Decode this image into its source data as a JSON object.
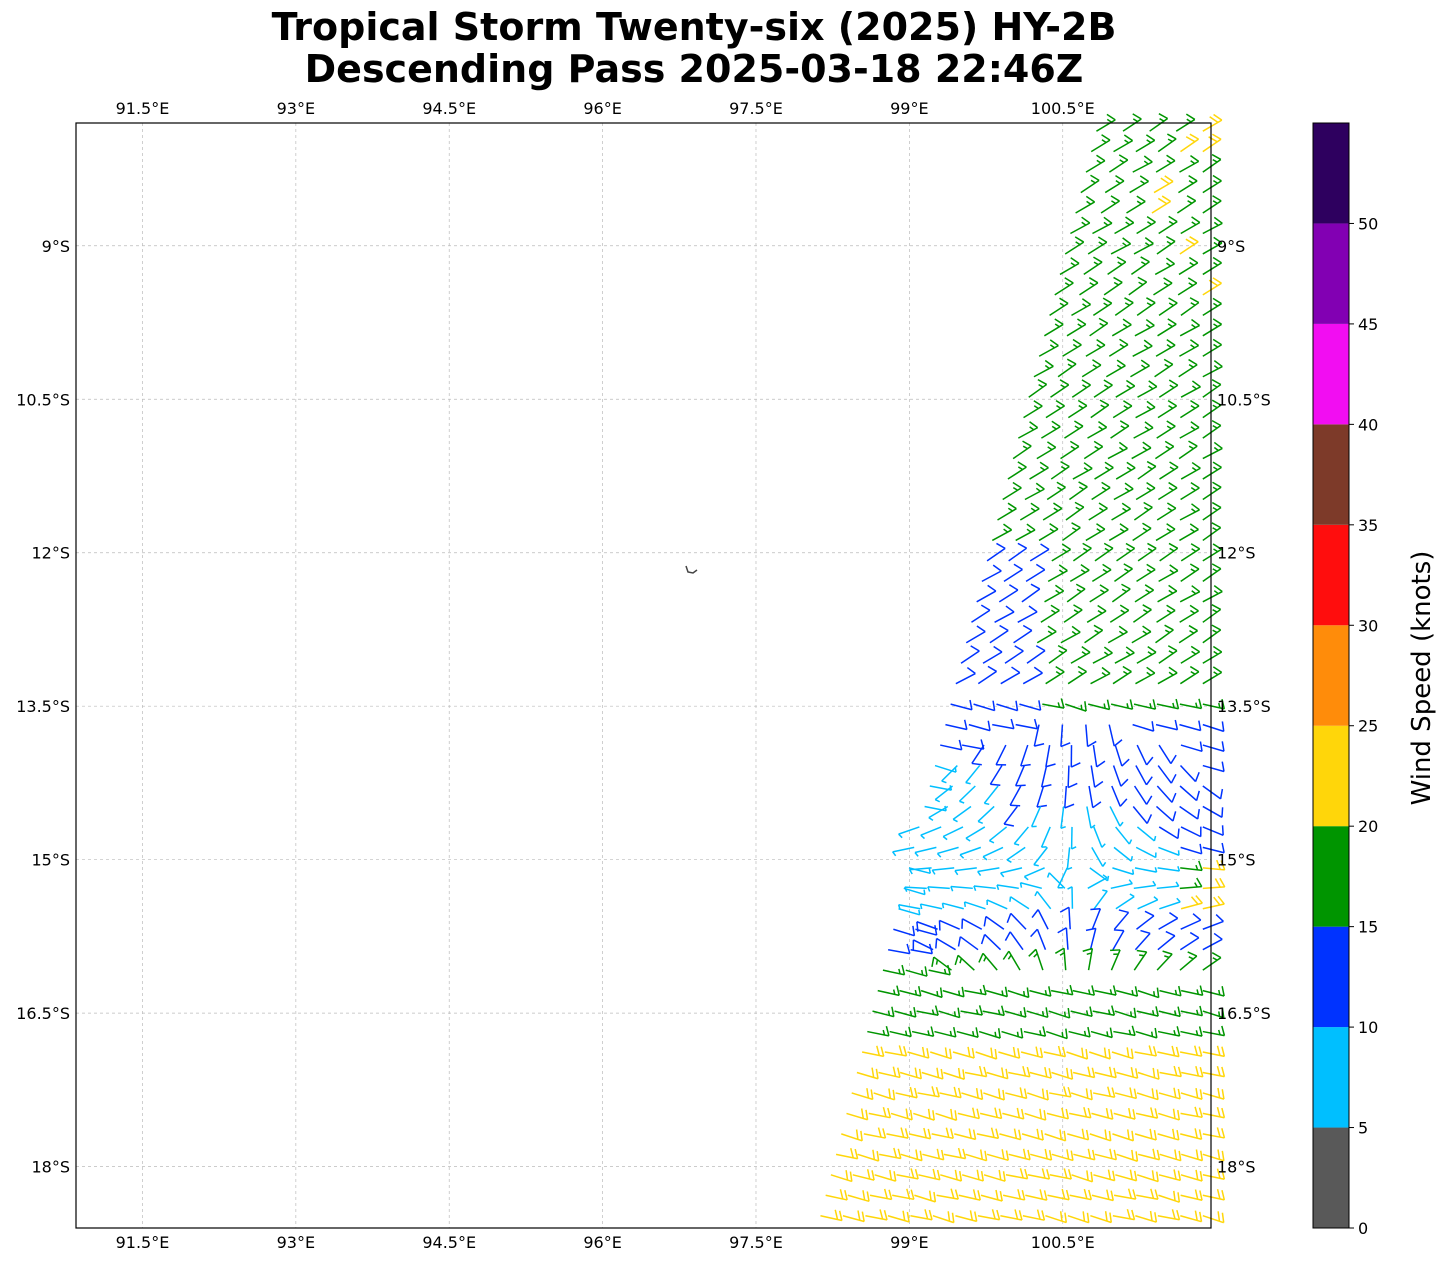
{
  "title": {
    "line1": "Tropical Storm Twenty-six (2025) HY-2B",
    "line2": "Descending Pass 2025-03-18 22:46Z"
  },
  "colorbar": {
    "label": "Wind Speed (knots)",
    "ticks": [
      "0",
      "5",
      "10",
      "15",
      "20",
      "25",
      "30",
      "35",
      "40",
      "45",
      "50"
    ],
    "bins": [
      {
        "from": 0,
        "to": 5,
        "color": "#595959"
      },
      {
        "from": 5,
        "to": 10,
        "color": "#00bfff"
      },
      {
        "from": 10,
        "to": 15,
        "color": "#0033ff"
      },
      {
        "from": 15,
        "to": 20,
        "color": "#009500"
      },
      {
        "from": 20,
        "to": 25,
        "color": "#ffd60a"
      },
      {
        "from": 25,
        "to": 30,
        "color": "#ff8c0a"
      },
      {
        "from": 30,
        "to": 35,
        "color": "#ff0d0d"
      },
      {
        "from": 35,
        "to": 40,
        "color": "#7d3a29"
      },
      {
        "from": 40,
        "to": 45,
        "color": "#f20df2"
      },
      {
        "from": 45,
        "to": 50,
        "color": "#8200b3"
      },
      {
        "from": 50,
        "to": 55,
        "color": "#2e005f"
      }
    ]
  },
  "chart_data": {
    "type": "wind-barb-map",
    "projection": "plate-carree",
    "xlim_lon_e": [
      90.85,
      101.95
    ],
    "ylim_lat": [
      -7.8,
      -18.6
    ],
    "lon_ticks": [
      91.5,
      93,
      94.5,
      96,
      97.5,
      99,
      100.5
    ],
    "lon_tick_labels": [
      "91.5°E",
      "93°E",
      "94.5°E",
      "96°E",
      "97.5°E",
      "99°E",
      "100.5°E"
    ],
    "lat_ticks": [
      -9,
      -10.5,
      -12,
      -13.5,
      -15,
      -16.5,
      -18
    ],
    "lat_tick_labels": [
      "9°S",
      "10.5°S",
      "12°S",
      "13.5°S",
      "15°S",
      "16.5°S",
      "18°S"
    ],
    "grid": true,
    "units": "knots",
    "swath": {
      "top_left_lon": 100.75,
      "top_right_lon": 101.95,
      "bottom_left_lon": 98.0,
      "bottom_right_lon": 101.95,
      "lat_top": -7.8,
      "lat_bottom": -18.6
    },
    "storm_center": {
      "lon": 100.6,
      "lat": -15.2
    },
    "wind_speed_regions": [
      {
        "lat_range": [
          -7.8,
          -12.0
        ],
        "typical_kt": 17,
        "color_bin": "15-20",
        "note": "with scattered 20-25 kt"
      },
      {
        "lat_range": [
          -12.0,
          -13.5
        ],
        "typical_kt": 14,
        "color_bin": "10-15 west / 15-20 east"
      },
      {
        "lat_range": [
          -13.5,
          -15.6
        ],
        "typical_kt": 8,
        "color_bin": "5-10 near center"
      },
      {
        "lat_range": [
          -15.6,
          -16.0
        ],
        "typical_kt": 13,
        "color_bin": "10-15"
      },
      {
        "lat_range": [
          -16.0,
          -16.8
        ],
        "typical_kt": 17,
        "color_bin": "15-20"
      },
      {
        "lat_range": [
          -16.8,
          -18.6
        ],
        "typical_kt": 22,
        "color_bin": "20-25"
      }
    ],
    "island_marker": {
      "lon": 96.85,
      "lat": -12.15
    }
  }
}
